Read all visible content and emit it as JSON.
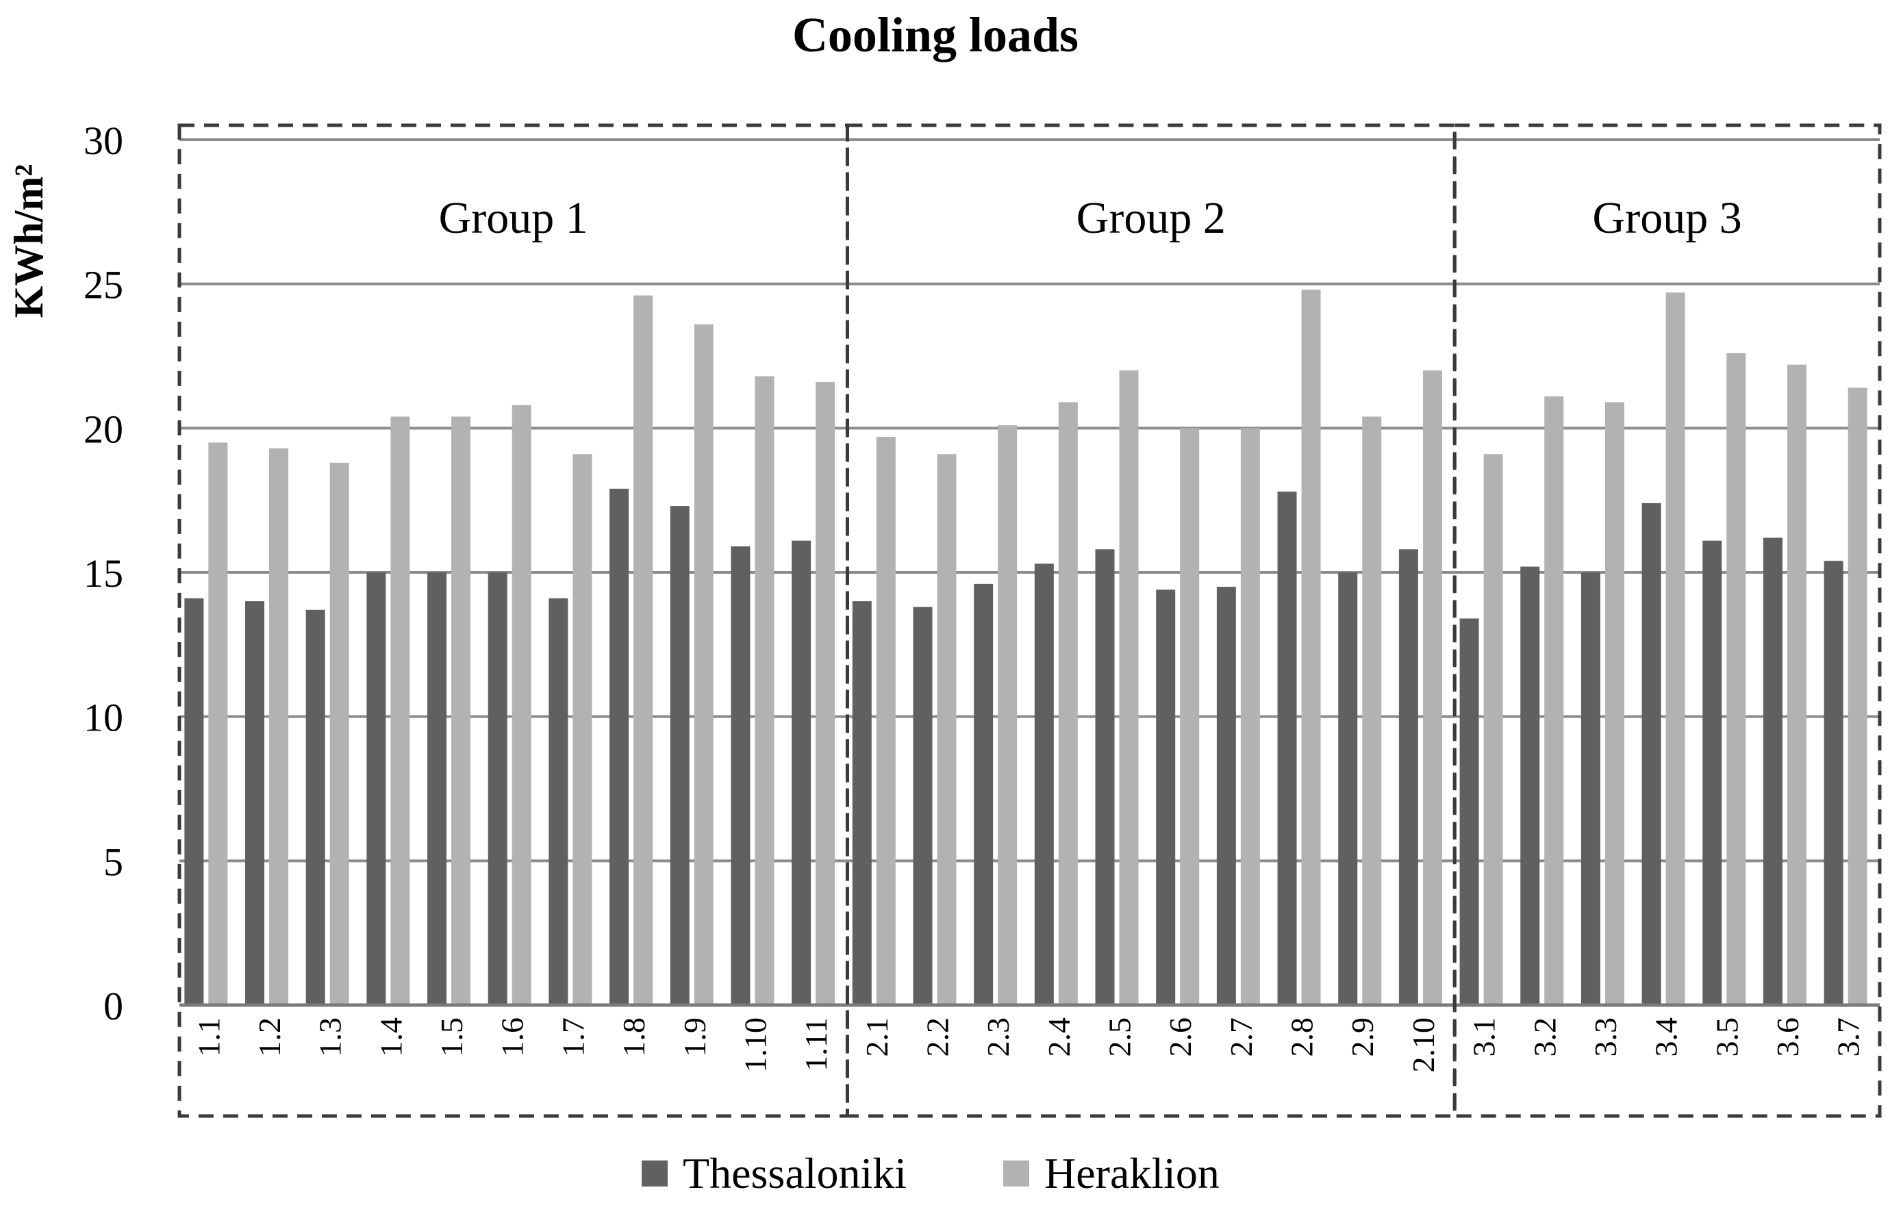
{
  "chart_data": {
    "type": "bar",
    "title": "Cooling loads",
    "xlabel": "",
    "ylabel": "KWh/m²",
    "ylim": [
      0,
      30
    ],
    "yticks": [
      0,
      5,
      10,
      15,
      20,
      25,
      30
    ],
    "grid": true,
    "legend_position": "bottom",
    "categories": [
      "1.1",
      "1.2",
      "1.3",
      "1.4",
      "1.5",
      "1.6",
      "1.7",
      "1.8",
      "1.9",
      "1.10",
      "1.11",
      "2.1",
      "2.2",
      "2.3",
      "2.4",
      "2.5",
      "2.6",
      "2.7",
      "2.8",
      "2.9",
      "2.10",
      "3.1",
      "3.2",
      "3.3",
      "3.4",
      "3.5",
      "3.6",
      "3.7"
    ],
    "series": [
      {
        "name": "Thessaloniki",
        "color": "#606060",
        "values": [
          14.1,
          14.0,
          13.7,
          15.0,
          15.0,
          15.0,
          14.1,
          17.9,
          17.3,
          15.9,
          16.1,
          14.0,
          13.8,
          14.6,
          15.3,
          15.8,
          14.4,
          14.5,
          17.8,
          15.0,
          15.8,
          13.4,
          15.2,
          15.0,
          17.4,
          16.1,
          16.2,
          15.4
        ]
      },
      {
        "name": "Heraklion",
        "color": "#b2b2b2",
        "values": [
          19.5,
          19.3,
          18.8,
          20.4,
          20.4,
          20.8,
          19.1,
          24.6,
          23.6,
          21.8,
          21.6,
          19.7,
          19.1,
          20.1,
          20.9,
          22.0,
          20.0,
          20.0,
          24.8,
          20.4,
          22.0,
          19.1,
          21.1,
          20.9,
          24.7,
          22.6,
          22.2,
          21.4
        ]
      }
    ],
    "groups": [
      {
        "label": "Group 1",
        "count": 11
      },
      {
        "label": "Group 2",
        "count": 10
      },
      {
        "label": "Group 3",
        "count": 7
      }
    ]
  }
}
